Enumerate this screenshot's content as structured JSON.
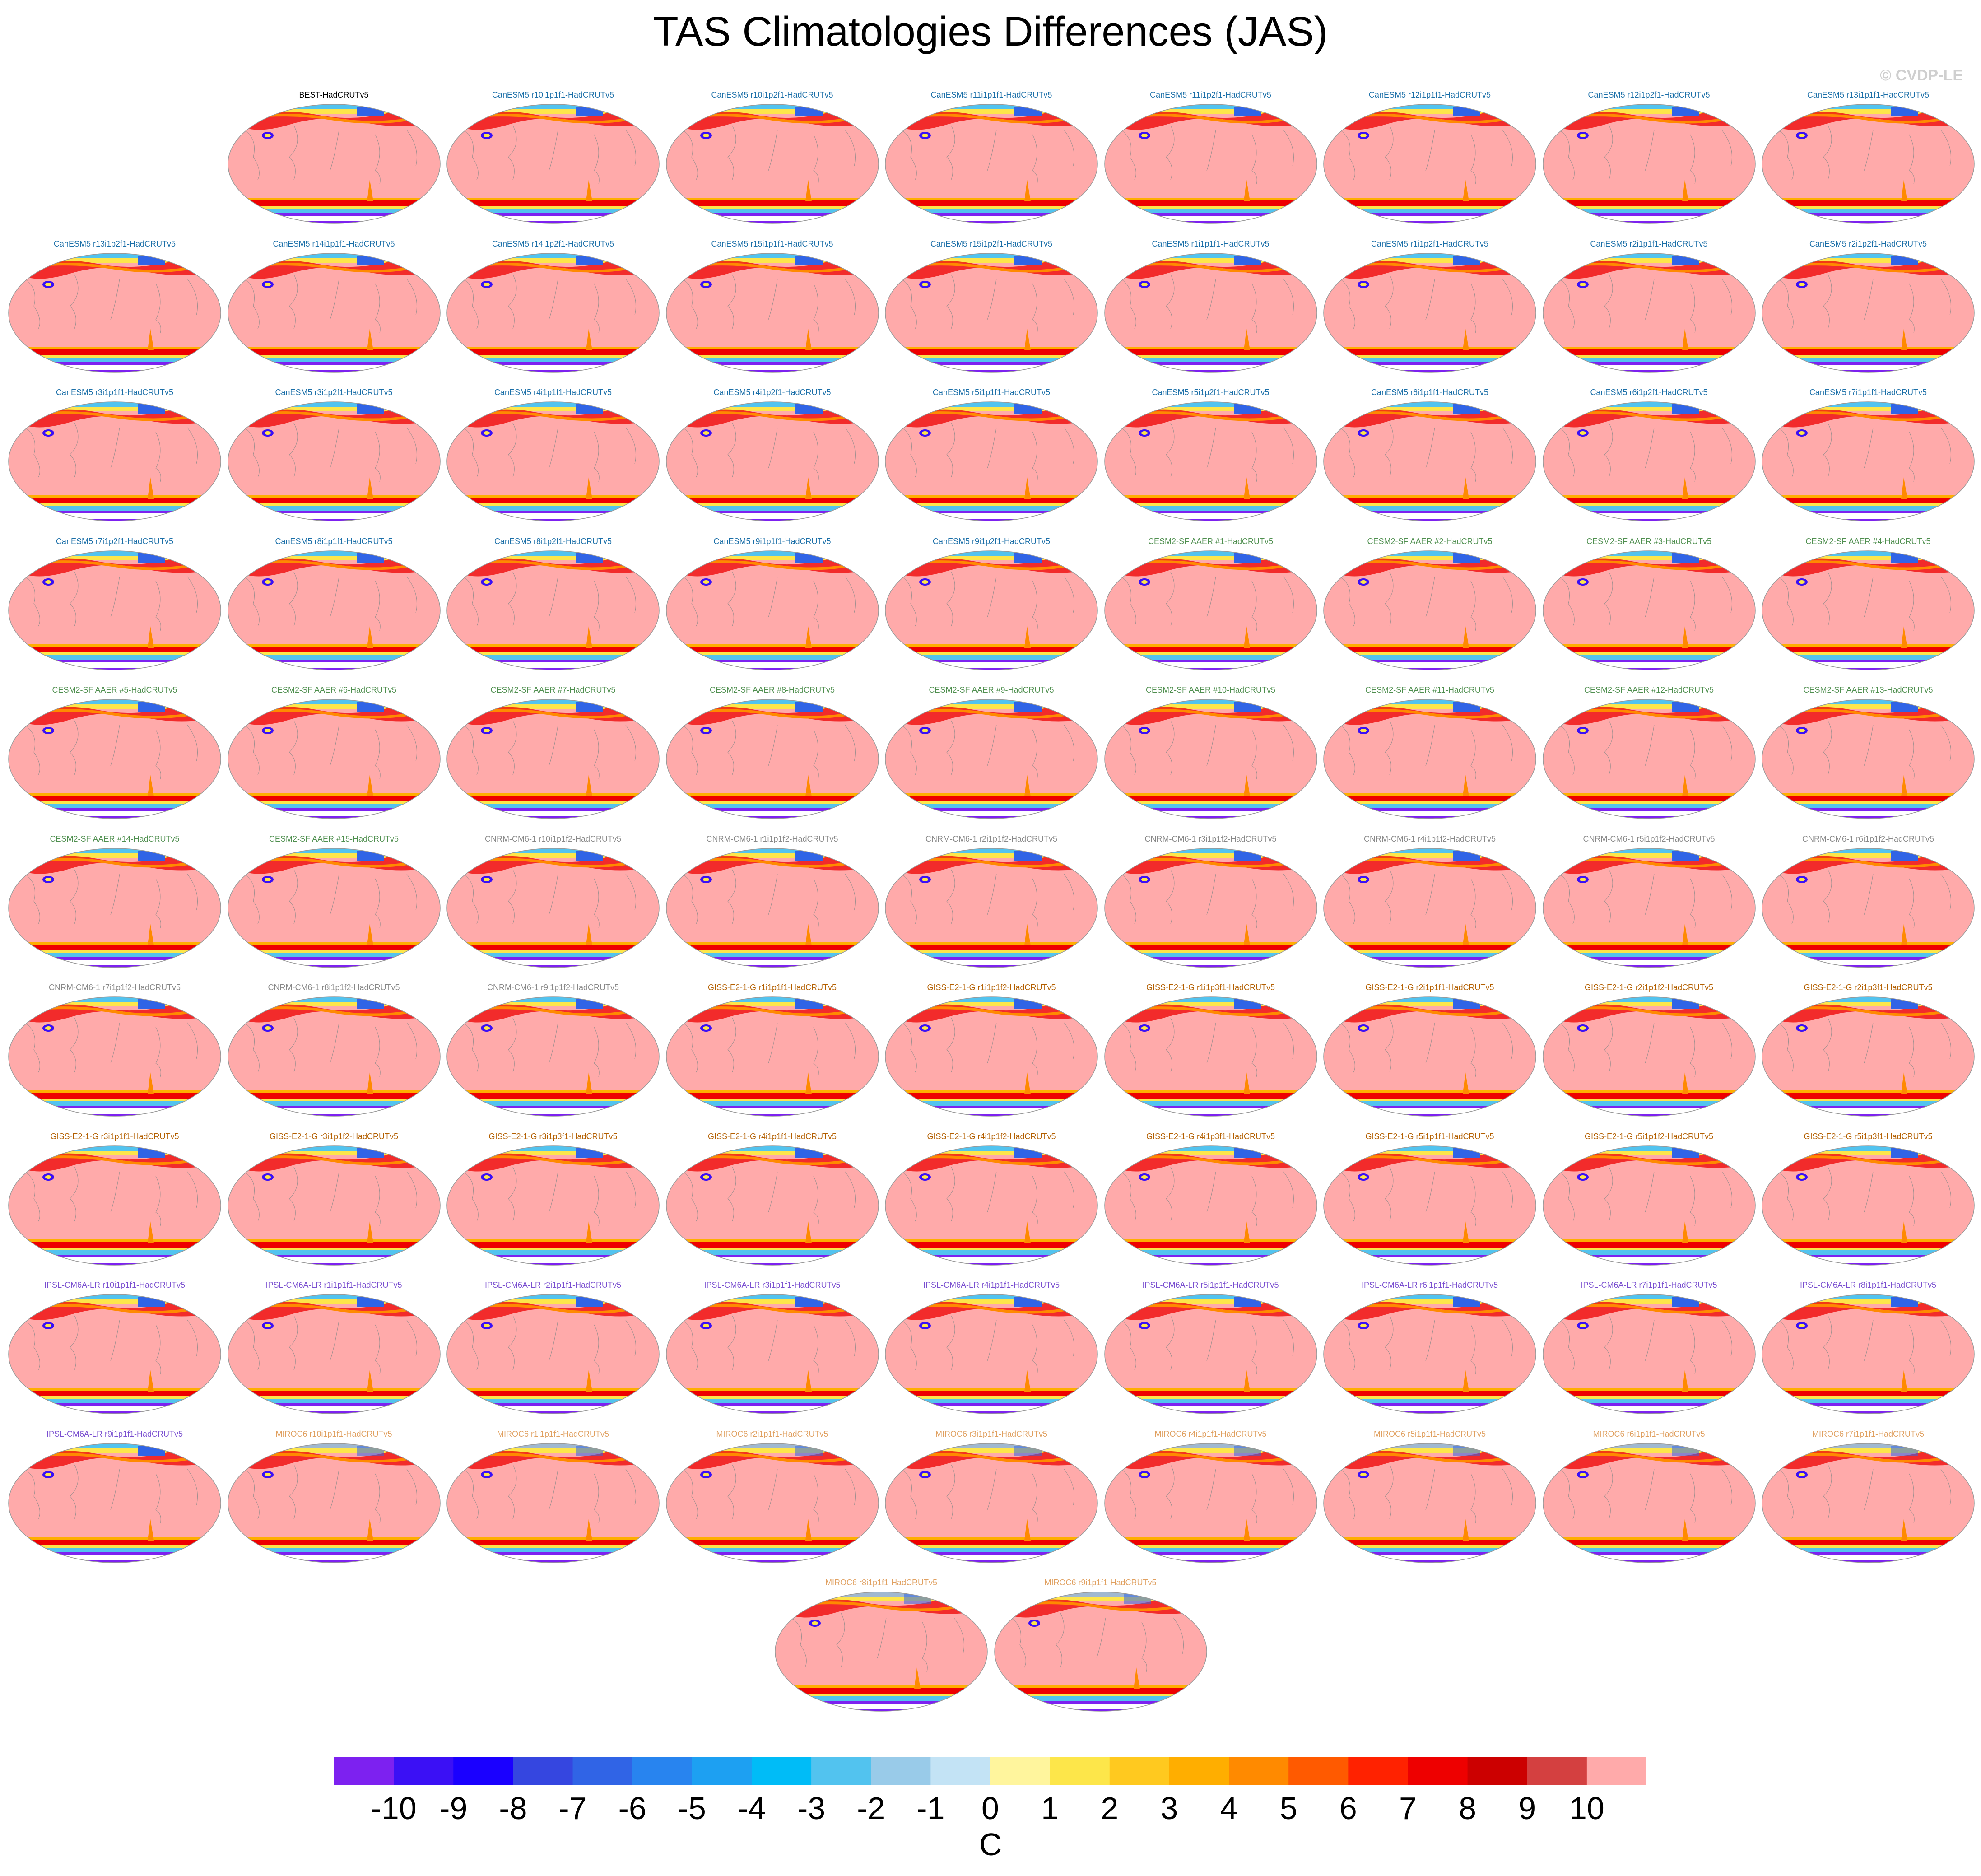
{
  "title": "TAS Climatologies Differences (JAS)",
  "copyright": "© CVDP-LE",
  "colors": {
    "best": "#000000",
    "canesm5": "#1b6fa8",
    "cesm2": "#4f8f4f",
    "cnrm": "#888888",
    "giss": "#b35f00",
    "ipsl": "#7a4fd0",
    "miroc": "#e0a060"
  },
  "panels": [
    {
      "label": "BEST-HadCRUTv5",
      "group": "best"
    },
    {
      "label": "CanESM5 r10i1p1f1-HadCRUTv5",
      "group": "canesm5"
    },
    {
      "label": "CanESM5 r10i1p2f1-HadCRUTv5",
      "group": "canesm5"
    },
    {
      "label": "CanESM5 r11i1p1f1-HadCRUTv5",
      "group": "canesm5"
    },
    {
      "label": "CanESM5 r11i1p2f1-HadCRUTv5",
      "group": "canesm5"
    },
    {
      "label": "CanESM5 r12i1p1f1-HadCRUTv5",
      "group": "canesm5"
    },
    {
      "label": "CanESM5 r12i1p2f1-HadCRUTv5",
      "group": "canesm5"
    },
    {
      "label": "CanESM5 r13i1p1f1-HadCRUTv5",
      "group": "canesm5"
    },
    {
      "label": "CanESM5 r13i1p2f1-HadCRUTv5",
      "group": "canesm5"
    },
    {
      "label": "CanESM5 r14i1p1f1-HadCRUTv5",
      "group": "canesm5"
    },
    {
      "label": "CanESM5 r14i1p2f1-HadCRUTv5",
      "group": "canesm5"
    },
    {
      "label": "CanESM5 r15i1p1f1-HadCRUTv5",
      "group": "canesm5"
    },
    {
      "label": "CanESM5 r15i1p2f1-HadCRUTv5",
      "group": "canesm5"
    },
    {
      "label": "CanESM5 r1i1p1f1-HadCRUTv5",
      "group": "canesm5"
    },
    {
      "label": "CanESM5 r1i1p2f1-HadCRUTv5",
      "group": "canesm5"
    },
    {
      "label": "CanESM5 r2i1p1f1-HadCRUTv5",
      "group": "canesm5"
    },
    {
      "label": "CanESM5 r2i1p2f1-HadCRUTv5",
      "group": "canesm5"
    },
    {
      "label": "CanESM5 r3i1p1f1-HadCRUTv5",
      "group": "canesm5"
    },
    {
      "label": "CanESM5 r3i1p2f1-HadCRUTv5",
      "group": "canesm5"
    },
    {
      "label": "CanESM5 r4i1p1f1-HadCRUTv5",
      "group": "canesm5"
    },
    {
      "label": "CanESM5 r4i1p2f1-HadCRUTv5",
      "group": "canesm5"
    },
    {
      "label": "CanESM5 r5i1p1f1-HadCRUTv5",
      "group": "canesm5"
    },
    {
      "label": "CanESM5 r5i1p2f1-HadCRUTv5",
      "group": "canesm5"
    },
    {
      "label": "CanESM5 r6i1p1f1-HadCRUTv5",
      "group": "canesm5"
    },
    {
      "label": "CanESM5 r6i1p2f1-HadCRUTv5",
      "group": "canesm5"
    },
    {
      "label": "CanESM5 r7i1p1f1-HadCRUTv5",
      "group": "canesm5"
    },
    {
      "label": "CanESM5 r7i1p2f1-HadCRUTv5",
      "group": "canesm5"
    },
    {
      "label": "CanESM5 r8i1p1f1-HadCRUTv5",
      "group": "canesm5"
    },
    {
      "label": "CanESM5 r8i1p2f1-HadCRUTv5",
      "group": "canesm5"
    },
    {
      "label": "CanESM5 r9i1p1f1-HadCRUTv5",
      "group": "canesm5"
    },
    {
      "label": "CanESM5 r9i1p2f1-HadCRUTv5",
      "group": "canesm5"
    },
    {
      "label": "CESM2-SF AAER #1-HadCRUTv5",
      "group": "cesm2"
    },
    {
      "label": "CESM2-SF AAER #2-HadCRUTv5",
      "group": "cesm2"
    },
    {
      "label": "CESM2-SF AAER #3-HadCRUTv5",
      "group": "cesm2"
    },
    {
      "label": "CESM2-SF AAER #4-HadCRUTv5",
      "group": "cesm2"
    },
    {
      "label": "CESM2-SF AAER #5-HadCRUTv5",
      "group": "cesm2"
    },
    {
      "label": "CESM2-SF AAER #6-HadCRUTv5",
      "group": "cesm2"
    },
    {
      "label": "CESM2-SF AAER #7-HadCRUTv5",
      "group": "cesm2"
    },
    {
      "label": "CESM2-SF AAER #8-HadCRUTv5",
      "group": "cesm2"
    },
    {
      "label": "CESM2-SF AAER #9-HadCRUTv5",
      "group": "cesm2"
    },
    {
      "label": "CESM2-SF AAER #10-HadCRUTv5",
      "group": "cesm2"
    },
    {
      "label": "CESM2-SF AAER #11-HadCRUTv5",
      "group": "cesm2"
    },
    {
      "label": "CESM2-SF AAER #12-HadCRUTv5",
      "group": "cesm2"
    },
    {
      "label": "CESM2-SF AAER #13-HadCRUTv5",
      "group": "cesm2"
    },
    {
      "label": "CESM2-SF AAER #14-HadCRUTv5",
      "group": "cesm2"
    },
    {
      "label": "CESM2-SF AAER #15-HadCRUTv5",
      "group": "cesm2"
    },
    {
      "label": "CNRM-CM6-1 r10i1p1f2-HadCRUTv5",
      "group": "cnrm"
    },
    {
      "label": "CNRM-CM6-1 r1i1p1f2-HadCRUTv5",
      "group": "cnrm"
    },
    {
      "label": "CNRM-CM6-1 r2i1p1f2-HadCRUTv5",
      "group": "cnrm"
    },
    {
      "label": "CNRM-CM6-1 r3i1p1f2-HadCRUTv5",
      "group": "cnrm"
    },
    {
      "label": "CNRM-CM6-1 r4i1p1f2-HadCRUTv5",
      "group": "cnrm"
    },
    {
      "label": "CNRM-CM6-1 r5i1p1f2-HadCRUTv5",
      "group": "cnrm"
    },
    {
      "label": "CNRM-CM6-1 r6i1p1f2-HadCRUTv5",
      "group": "cnrm"
    },
    {
      "label": "CNRM-CM6-1 r7i1p1f2-HadCRUTv5",
      "group": "cnrm"
    },
    {
      "label": "CNRM-CM6-1 r8i1p1f2-HadCRUTv5",
      "group": "cnrm"
    },
    {
      "label": "CNRM-CM6-1 r9i1p1f2-HadCRUTv5",
      "group": "cnrm"
    },
    {
      "label": "GISS-E2-1-G r1i1p1f1-HadCRUTv5",
      "group": "giss"
    },
    {
      "label": "GISS-E2-1-G r1i1p1f2-HadCRUTv5",
      "group": "giss"
    },
    {
      "label": "GISS-E2-1-G r1i1p3f1-HadCRUTv5",
      "group": "giss"
    },
    {
      "label": "GISS-E2-1-G r2i1p1f1-HadCRUTv5",
      "group": "giss"
    },
    {
      "label": "GISS-E2-1-G r2i1p1f2-HadCRUTv5",
      "group": "giss"
    },
    {
      "label": "GISS-E2-1-G r2i1p3f1-HadCRUTv5",
      "group": "giss"
    },
    {
      "label": "GISS-E2-1-G r3i1p1f1-HadCRUTv5",
      "group": "giss"
    },
    {
      "label": "GISS-E2-1-G r3i1p1f2-HadCRUTv5",
      "group": "giss"
    },
    {
      "label": "GISS-E2-1-G r3i1p3f1-HadCRUTv5",
      "group": "giss"
    },
    {
      "label": "GISS-E2-1-G r4i1p1f1-HadCRUTv5",
      "group": "giss"
    },
    {
      "label": "GISS-E2-1-G r4i1p1f2-HadCRUTv5",
      "group": "giss"
    },
    {
      "label": "GISS-E2-1-G r4i1p3f1-HadCRUTv5",
      "group": "giss"
    },
    {
      "label": "GISS-E2-1-G r5i1p1f1-HadCRUTv5",
      "group": "giss"
    },
    {
      "label": "GISS-E2-1-G r5i1p1f2-HadCRUTv5",
      "group": "giss"
    },
    {
      "label": "GISS-E2-1-G r5i1p3f1-HadCRUTv5",
      "group": "giss"
    },
    {
      "label": "IPSL-CM6A-LR r10i1p1f1-HadCRUTv5",
      "group": "ipsl"
    },
    {
      "label": "IPSL-CM6A-LR r1i1p1f1-HadCRUTv5",
      "group": "ipsl"
    },
    {
      "label": "IPSL-CM6A-LR r2i1p1f1-HadCRUTv5",
      "group": "ipsl"
    },
    {
      "label": "IPSL-CM6A-LR r3i1p1f1-HadCRUTv5",
      "group": "ipsl"
    },
    {
      "label": "IPSL-CM6A-LR r4i1p1f1-HadCRUTv5",
      "group": "ipsl"
    },
    {
      "label": "IPSL-CM6A-LR r5i1p1f1-HadCRUTv5",
      "group": "ipsl"
    },
    {
      "label": "IPSL-CM6A-LR r6i1p1f1-HadCRUTv5",
      "group": "ipsl"
    },
    {
      "label": "IPSL-CM6A-LR r7i1p1f1-HadCRUTv5",
      "group": "ipsl"
    },
    {
      "label": "IPSL-CM6A-LR r8i1p1f1-HadCRUTv5",
      "group": "ipsl"
    },
    {
      "label": "IPSL-CM6A-LR r9i1p1f1-HadCRUTv5",
      "group": "ipsl"
    },
    {
      "label": "MIROC6 r10i1p1f1-HadCRUTv5",
      "group": "miroc"
    },
    {
      "label": "MIROC6 r1i1p1f1-HadCRUTv5",
      "group": "miroc"
    },
    {
      "label": "MIROC6 r2i1p1f1-HadCRUTv5",
      "group": "miroc"
    },
    {
      "label": "MIROC6 r3i1p1f1-HadCRUTv5",
      "group": "miroc"
    },
    {
      "label": "MIROC6 r4i1p1f1-HadCRUTv5",
      "group": "miroc"
    },
    {
      "label": "MIROC6 r5i1p1f1-HadCRUTv5",
      "group": "miroc"
    },
    {
      "label": "MIROC6 r6i1p1f1-HadCRUTv5",
      "group": "miroc"
    },
    {
      "label": "MIROC6 r7i1p1f1-HadCRUTv5",
      "group": "miroc"
    },
    {
      "label": "MIROC6 r8i1p1f1-HadCRUTv5",
      "group": "miroc"
    },
    {
      "label": "MIROC6 r9i1p1f1-HadCRUTv5",
      "group": "miroc"
    }
  ],
  "colorbar": {
    "unit": "C",
    "tick_labels": [
      "-10",
      "-9",
      "-8",
      "-7",
      "-6",
      "-5",
      "-4",
      "-3",
      "-2",
      "-1",
      "0",
      "1",
      "2",
      "3",
      "4",
      "5",
      "6",
      "7",
      "8",
      "9",
      "10"
    ],
    "colors": [
      "#7d21f0",
      "#3b10f5",
      "#1a00ff",
      "#3546e0",
      "#3064e6",
      "#2884ef",
      "#1da0f2",
      "#00bcf7",
      "#52c3ef",
      "#99cbe9",
      "#c3e3f5",
      "#fff59d",
      "#fde64a",
      "#ffc91f",
      "#ffae00",
      "#ff8a00",
      "#ff5a00",
      "#ff2200",
      "#ee0000",
      "#cc0000",
      "#d44040",
      "#ffaaaa"
    ]
  }
}
